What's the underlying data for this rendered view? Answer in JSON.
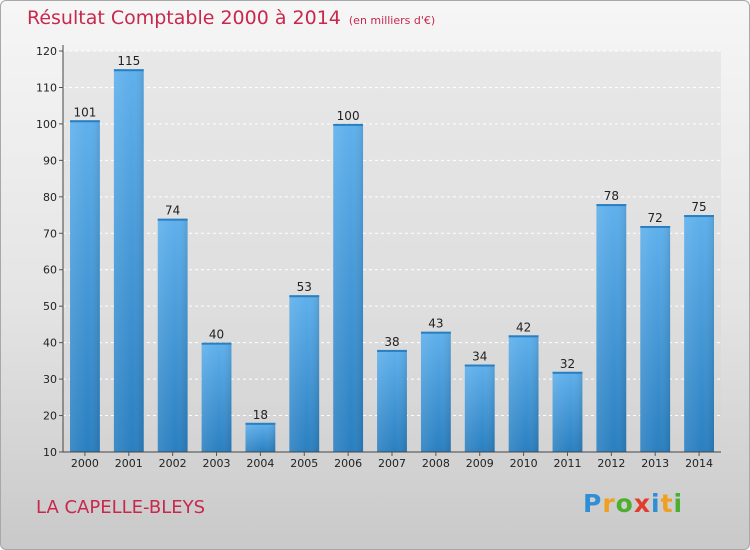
{
  "header": {
    "title": "Résultat Comptable 2000 à 2014",
    "subtitle": "(en milliers d'€)"
  },
  "footer": {
    "commune": "LA CAPELLE-BLEYS",
    "logo_letters": [
      "P",
      "r",
      "o",
      "x",
      "i",
      "t",
      "i"
    ],
    "logo_colors": [
      "#2e8fd6",
      "#f0a020",
      "#4caf2e",
      "#e23c2c",
      "#2e8fd6",
      "#f0a020",
      "#4caf2e"
    ]
  },
  "colors": {
    "title": "#c8284c",
    "bar_top": "#5fb0ec",
    "bar_bottom": "#2a7fc0"
  },
  "chart_data": {
    "type": "bar",
    "title": "Résultat Comptable 2000 à 2014",
    "subtitle": "(en milliers d'€)",
    "categories": [
      "2000",
      "2001",
      "2002",
      "2003",
      "2004",
      "2005",
      "2006",
      "2007",
      "2008",
      "2009",
      "2010",
      "2011",
      "2012",
      "2013",
      "2014"
    ],
    "values": [
      101,
      115,
      74,
      40,
      18,
      53,
      100,
      38,
      43,
      34,
      42,
      32,
      78,
      72,
      75
    ],
    "ylim": [
      10,
      120
    ],
    "yticks": [
      10,
      20,
      30,
      40,
      50,
      60,
      70,
      80,
      90,
      100,
      110,
      120
    ],
    "xlabel": "",
    "ylabel": "",
    "grid": true
  }
}
